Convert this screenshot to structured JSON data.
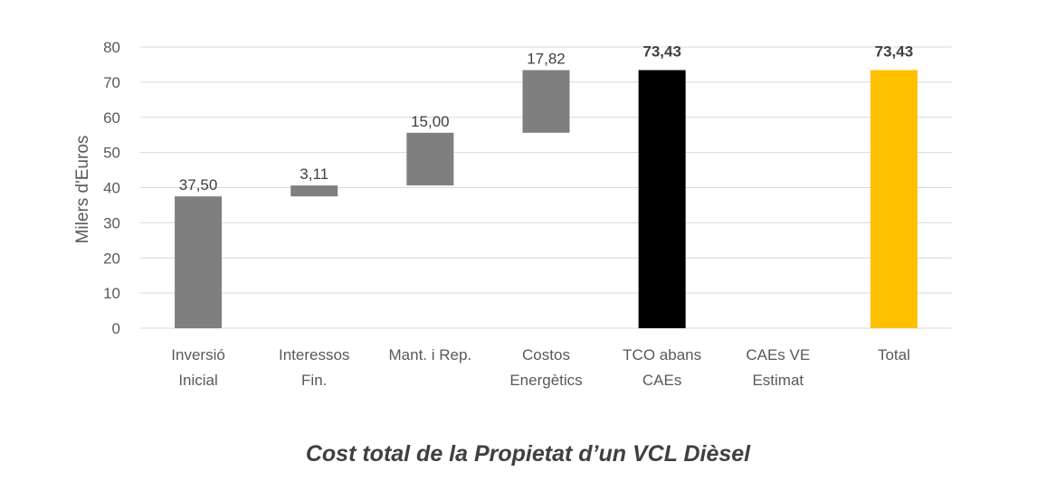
{
  "chart_data": {
    "type": "bar",
    "subtype": "waterfall",
    "title": "Cost total de la Propietat d’un VCL Dièsel",
    "ylabel": "Milers d'Euros",
    "xlabel": "",
    "ylim": [
      0,
      80
    ],
    "yticks": [
      0,
      10,
      20,
      30,
      40,
      50,
      60,
      70,
      80
    ],
    "grid": true,
    "categories": [
      [
        "Inversió",
        "Inicial"
      ],
      [
        "Interessos",
        "Fin."
      ],
      [
        "Mant. i Rep."
      ],
      [
        "Costos",
        "Energètics"
      ],
      [
        "TCO abans",
        "CAEs"
      ],
      [
        "CAEs VE",
        "Estimat"
      ],
      [
        "Total"
      ]
    ],
    "values": [
      37.5,
      3.11,
      15.0,
      17.82,
      73.43,
      0,
      73.43
    ],
    "bases": [
      0,
      37.5,
      40.61,
      55.61,
      0,
      73.43,
      0
    ],
    "labels": [
      "37,50",
      "3,11",
      "15,00",
      "17,82",
      "73,43",
      "",
      "73,43"
    ],
    "bold_labels": [
      false,
      false,
      false,
      false,
      true,
      false,
      true
    ],
    "colors": [
      "#7f7f7f",
      "#7f7f7f",
      "#7f7f7f",
      "#7f7f7f",
      "#000000",
      "#7f7f7f",
      "#ffc000"
    ]
  }
}
